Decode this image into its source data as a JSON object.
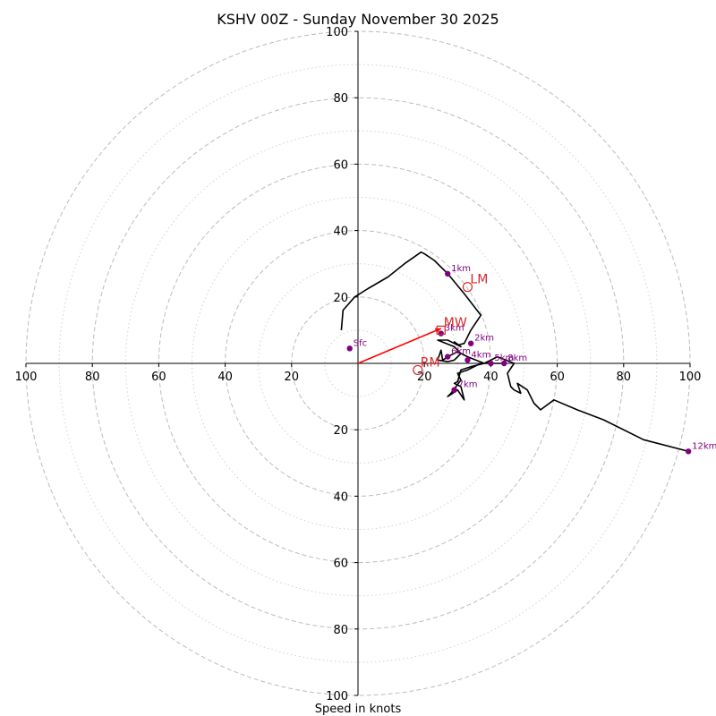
{
  "chart_data": {
    "type": "hodograph",
    "title": "KSHV 00Z - Sunday November 30 2025",
    "xlabel": "Speed in knots",
    "units": "knots",
    "max_speed": 100,
    "ring_major": [
      20,
      40,
      60,
      80,
      100
    ],
    "ring_minor": [
      10,
      30,
      50,
      70,
      90
    ],
    "axis_ticks": {
      "top": [
        "100",
        "80",
        "60",
        "40",
        "20"
      ],
      "bottom": [
        "20",
        "40",
        "60",
        "80",
        "100"
      ],
      "left": [
        "100",
        "80",
        "60",
        "40",
        "20"
      ],
      "right": [
        "20",
        "40",
        "60",
        "80",
        "100"
      ]
    },
    "trace": [
      [
        -5,
        10
      ],
      [
        -4.5,
        16
      ],
      [
        -1,
        20
      ],
      [
        3,
        22.5
      ],
      [
        9,
        26
      ],
      [
        14,
        30
      ],
      [
        19,
        33.5
      ],
      [
        20,
        33
      ],
      [
        23,
        31
      ],
      [
        27,
        27
      ],
      [
        32,
        21
      ],
      [
        37,
        14.5
      ],
      [
        34,
        10
      ],
      [
        32,
        6
      ],
      [
        30,
        5.5
      ],
      [
        29,
        6.5
      ],
      [
        31,
        5
      ],
      [
        27,
        7
      ],
      [
        24,
        7
      ],
      [
        29,
        5
      ],
      [
        30,
        4
      ],
      [
        31,
        3
      ],
      [
        29,
        1
      ],
      [
        27,
        0.5
      ],
      [
        24,
        1
      ],
      [
        25,
        4
      ],
      [
        25.5,
        1
      ],
      [
        28,
        2.5
      ],
      [
        30,
        3.5
      ],
      [
        33,
        2
      ],
      [
        38,
        0
      ],
      [
        41,
        0
      ],
      [
        44,
        0
      ],
      [
        37,
        0
      ],
      [
        35,
        -1
      ],
      [
        33,
        -2
      ],
      [
        30,
        -3
      ],
      [
        31,
        -5
      ],
      [
        28,
        -9
      ],
      [
        27,
        -10
      ],
      [
        30,
        -8
      ],
      [
        32,
        -11
      ],
      [
        31,
        -7
      ],
      [
        29,
        -6
      ],
      [
        30,
        -5.5
      ],
      [
        31,
        -2
      ],
      [
        34,
        -1
      ],
      [
        38,
        0
      ],
      [
        42,
        2
      ],
      [
        47,
        0
      ],
      [
        45,
        -3
      ],
      [
        46,
        -7
      ],
      [
        47,
        -8
      ],
      [
        49,
        -9
      ],
      [
        48,
        -6
      ],
      [
        51,
        -8
      ],
      [
        53,
        -12
      ],
      [
        55,
        -14
      ],
      [
        59,
        -11
      ],
      [
        66,
        -14
      ],
      [
        74,
        -17
      ],
      [
        86,
        -23
      ],
      [
        99.5,
        -26.5
      ]
    ],
    "height_markers": [
      {
        "label": "Sfc",
        "u": -2.5,
        "v": 4.5
      },
      {
        "label": "1km",
        "u": 27,
        "v": 27
      },
      {
        "label": "2km",
        "u": 34,
        "v": 6
      },
      {
        "label": "3km",
        "u": 25,
        "v": 9
      },
      {
        "label": "4km",
        "u": 33,
        "v": 1
      },
      {
        "label": "5km",
        "u": 40,
        "v": 0
      },
      {
        "label": "6km",
        "u": 27,
        "v": 2
      },
      {
        "label": "7km",
        "u": 29,
        "v": -8
      },
      {
        "label": "8km",
        "u": 44,
        "v": 0
      },
      {
        "label": "12km",
        "u": 99.5,
        "v": -26.5
      }
    ],
    "motion_markers": [
      {
        "label": "LM",
        "u": 33,
        "v": 23,
        "symbol": "circle"
      },
      {
        "label": "MW",
        "u": 25,
        "v": 10,
        "symbol": "square"
      },
      {
        "label": "RM",
        "u": 18,
        "v": -2,
        "symbol": "circle"
      }
    ],
    "storm_vector": {
      "u": 25,
      "v": 10.5
    }
  },
  "colors": {
    "trace": "#000000",
    "marker": "#800080",
    "motion": "#d62728",
    "vector": "#ff0000",
    "ring": "#bcbcbc",
    "ring_minor": "#d2d2d2"
  }
}
